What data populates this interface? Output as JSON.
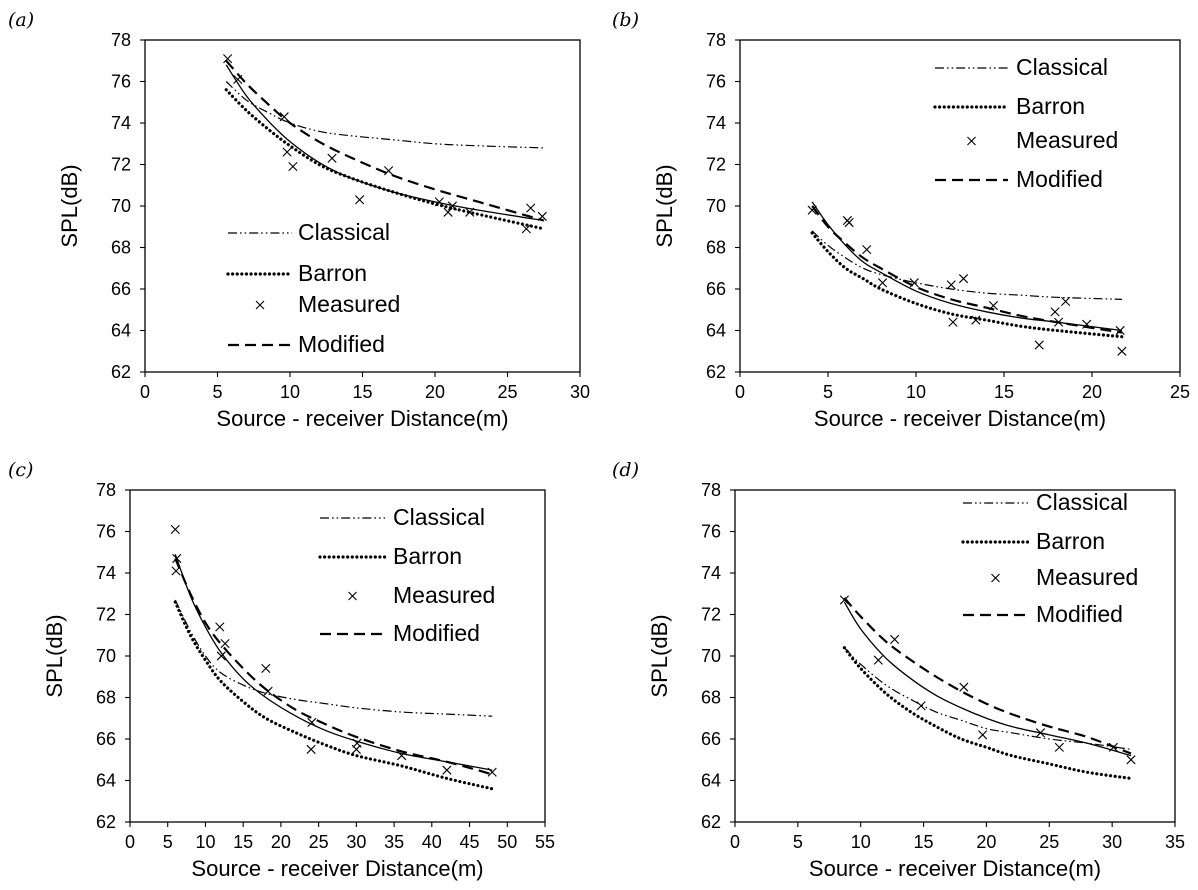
{
  "colors": {
    "ink": "#000000",
    "background": "#ffffff"
  },
  "legend_labels": [
    "Classical",
    "Barron",
    "Measured",
    "Modified"
  ],
  "chart_data": [
    {
      "type": "scatter",
      "panel_label": "(a)",
      "xlabel": "Source - receiver Distance(m)",
      "ylabel": "SPL(dB)",
      "xlim": [
        0,
        30
      ],
      "xticks": [
        0,
        5,
        10,
        15,
        20,
        25,
        30
      ],
      "ylim": [
        62,
        78
      ],
      "yticks": [
        62,
        64,
        66,
        68,
        70,
        72,
        74,
        76,
        78
      ],
      "legend_position": "lower-left",
      "series": [
        {
          "name": "Classical",
          "style": "dash-dot-dot",
          "x": [
            5.6,
            7,
            8.5,
            10,
            12,
            14,
            17,
            20,
            23,
            27.5
          ],
          "y": [
            76.0,
            75.1,
            74.5,
            74.0,
            73.6,
            73.4,
            73.2,
            73.0,
            72.9,
            72.8
          ]
        },
        {
          "name": "Barron",
          "style": "dotted",
          "x": [
            5.6,
            7,
            8.5,
            10,
            12,
            14,
            17,
            20,
            23,
            27.5
          ],
          "y": [
            75.6,
            74.6,
            73.7,
            72.9,
            72.0,
            71.4,
            70.7,
            70.1,
            69.6,
            68.9
          ]
        },
        {
          "name": "Measured",
          "style": "marker-x",
          "x": [
            5.7,
            6.4,
            9.6,
            9.8,
            10.2,
            12.9,
            14.8,
            16.8,
            20.3,
            20.9,
            21.2,
            22.4,
            26.3,
            26.6,
            27.4
          ],
          "y": [
            77.1,
            76.1,
            74.3,
            72.6,
            71.9,
            72.3,
            70.3,
            71.7,
            70.2,
            69.7,
            70.0,
            69.7,
            68.9,
            69.9,
            69.5
          ]
        },
        {
          "name": "Modified",
          "style": "dashed",
          "x": [
            5.6,
            7,
            8.5,
            10,
            12,
            14,
            17,
            20,
            23,
            27.5
          ],
          "y": [
            77.0,
            75.9,
            74.9,
            74.0,
            73.1,
            72.4,
            71.5,
            70.8,
            70.2,
            69.3
          ]
        },
        {
          "name": "",
          "style": "solid",
          "x": [
            5.6,
            7,
            8.5,
            10,
            12,
            14,
            17,
            20,
            23,
            27.5
          ],
          "y": [
            76.8,
            75.3,
            74.1,
            73.1,
            72.1,
            71.4,
            70.7,
            70.2,
            69.8,
            69.3
          ]
        }
      ]
    },
    {
      "type": "scatter",
      "panel_label": "(b)",
      "xlabel": "Source - receiver Distance(m)",
      "ylabel": "SPL(dB)",
      "xlim": [
        0,
        25
      ],
      "xticks": [
        0,
        5,
        10,
        15,
        20,
        25
      ],
      "ylim": [
        62,
        78
      ],
      "yticks": [
        62,
        64,
        66,
        68,
        70,
        72,
        74,
        76,
        78
      ],
      "legend_position": "top-right",
      "series": [
        {
          "name": "Classical",
          "style": "dash-dot-dot",
          "x": [
            4.1,
            5,
            6,
            7,
            8,
            10,
            12,
            14,
            16,
            18,
            21.7
          ],
          "y": [
            68.8,
            68.1,
            67.5,
            67.0,
            66.7,
            66.3,
            66.0,
            65.8,
            65.7,
            65.6,
            65.5
          ]
        },
        {
          "name": "Barron",
          "style": "dotted",
          "x": [
            4.1,
            5,
            6,
            7,
            8,
            10,
            12,
            14,
            16,
            18,
            21.7
          ],
          "y": [
            68.7,
            67.8,
            67.0,
            66.5,
            66.0,
            65.3,
            64.8,
            64.5,
            64.2,
            64.0,
            63.7
          ]
        },
        {
          "name": "Measured",
          "style": "marker-x",
          "x": [
            4.1,
            6.1,
            6.2,
            7.2,
            8.1,
            9.9,
            12.0,
            12.1,
            12.7,
            13.4,
            14.4,
            17.0,
            17.9,
            18.1,
            18.5,
            19.7,
            21.6,
            21.7
          ],
          "y": [
            69.8,
            69.3,
            69.2,
            67.9,
            66.3,
            66.3,
            66.2,
            64.4,
            66.5,
            64.5,
            65.2,
            63.3,
            64.9,
            64.4,
            65.4,
            64.3,
            64.0,
            63.0
          ]
        },
        {
          "name": "Modified",
          "style": "dashed",
          "x": [
            4.1,
            5,
            6,
            7,
            8,
            10,
            12,
            14,
            16,
            18,
            21.7
          ],
          "y": [
            70.0,
            69.0,
            68.2,
            67.5,
            67.0,
            66.1,
            65.5,
            65.1,
            64.7,
            64.4,
            63.9
          ]
        },
        {
          "name": "",
          "style": "solid",
          "x": [
            4.1,
            5,
            6,
            7,
            8,
            10,
            12,
            14,
            16,
            18,
            21.7
          ],
          "y": [
            70.2,
            69.1,
            68.1,
            67.3,
            66.8,
            65.9,
            65.3,
            64.9,
            64.6,
            64.4,
            64.0
          ]
        }
      ]
    },
    {
      "type": "scatter",
      "panel_label": "(c)",
      "xlabel": "Source - receiver Distance(m)",
      "ylabel": "SPL(dB)",
      "xlim": [
        0,
        55
      ],
      "xticks": [
        0,
        5,
        10,
        15,
        20,
        25,
        30,
        35,
        40,
        45,
        50,
        55
      ],
      "ylim": [
        62,
        78
      ],
      "yticks": [
        62,
        64,
        66,
        68,
        70,
        72,
        74,
        76,
        78
      ],
      "legend_position": "top-right",
      "series": [
        {
          "name": "Classical",
          "style": "dash-dot-dot",
          "x": [
            6,
            8,
            10,
            12,
            15,
            18,
            22,
            26,
            30,
            36,
            42,
            48
          ],
          "y": [
            72.7,
            71.2,
            70.0,
            69.2,
            68.6,
            68.2,
            67.9,
            67.7,
            67.5,
            67.3,
            67.2,
            67.1
          ]
        },
        {
          "name": "Barron",
          "style": "dotted",
          "x": [
            6,
            8,
            10,
            12,
            15,
            18,
            22,
            26,
            30,
            36,
            42,
            48
          ],
          "y": [
            72.6,
            71.0,
            69.8,
            68.8,
            67.8,
            67.0,
            66.3,
            65.7,
            65.2,
            64.7,
            64.1,
            63.6
          ]
        },
        {
          "name": "Measured",
          "style": "marker-x",
          "x": [
            6.0,
            6.1,
            6.2,
            11.9,
            12.1,
            12.6,
            18.0,
            18.3,
            24.0,
            24.1,
            30.0,
            30.1,
            36.0,
            42.0,
            48.0
          ],
          "y": [
            76.1,
            74.1,
            74.7,
            71.4,
            70.0,
            70.6,
            69.4,
            68.3,
            65.5,
            66.8,
            65.5,
            65.8,
            65.2,
            64.5,
            64.4
          ]
        },
        {
          "name": "Modified",
          "style": "dashed",
          "x": [
            6,
            8,
            10,
            12,
            15,
            18,
            22,
            26,
            30,
            36,
            42,
            48
          ],
          "y": [
            74.7,
            73.0,
            71.6,
            70.6,
            69.4,
            68.4,
            67.4,
            66.7,
            66.1,
            65.4,
            64.9,
            64.3
          ]
        },
        {
          "name": "",
          "style": "solid",
          "x": [
            6,
            8,
            10,
            12,
            15,
            18,
            22,
            26,
            30,
            36,
            42,
            48
          ],
          "y": [
            74.9,
            72.9,
            71.4,
            70.2,
            68.9,
            68.0,
            67.1,
            66.4,
            65.9,
            65.3,
            64.9,
            64.5
          ]
        }
      ]
    },
    {
      "type": "scatter",
      "panel_label": "(d)",
      "xlabel": "Source - receiver Distance(m)",
      "ylabel": "SPL(dB)",
      "xlim": [
        0,
        35
      ],
      "xticks": [
        0,
        5,
        10,
        15,
        20,
        25,
        30,
        35
      ],
      "ylim": [
        62,
        78
      ],
      "yticks": [
        62,
        64,
        66,
        68,
        70,
        72,
        74,
        76,
        78
      ],
      "legend_position": "top-right",
      "series": [
        {
          "name": "Classical",
          "style": "dash-dot-dot",
          "x": [
            8.7,
            10,
            12,
            14,
            16,
            18,
            20,
            22,
            25,
            28,
            31.5
          ],
          "y": [
            70.4,
            69.6,
            68.6,
            67.9,
            67.3,
            66.9,
            66.5,
            66.3,
            66.0,
            65.8,
            65.5
          ]
        },
        {
          "name": "Barron",
          "style": "dotted",
          "x": [
            8.7,
            10,
            12,
            14,
            16,
            18,
            20,
            22,
            25,
            28,
            31.5
          ],
          "y": [
            70.4,
            69.4,
            68.2,
            67.3,
            66.6,
            66.0,
            65.6,
            65.2,
            64.8,
            64.4,
            64.1
          ]
        },
        {
          "name": "Measured",
          "style": "marker-x",
          "x": [
            8.7,
            11.4,
            12.7,
            14.8,
            18.2,
            19.7,
            24.3,
            25.8,
            30.1,
            31.5
          ],
          "y": [
            72.7,
            69.8,
            70.8,
            67.6,
            68.5,
            66.2,
            66.3,
            65.6,
            65.6,
            65.0
          ]
        },
        {
          "name": "Modified",
          "style": "dashed",
          "x": [
            8.7,
            10,
            12,
            14,
            16,
            18,
            20,
            22,
            25,
            28,
            31.5
          ],
          "y": [
            72.8,
            71.9,
            70.7,
            69.8,
            69.0,
            68.3,
            67.7,
            67.2,
            66.6,
            66.1,
            65.3
          ]
        },
        {
          "name": "",
          "style": "solid",
          "x": [
            8.7,
            10,
            12,
            14,
            16,
            18,
            20,
            22,
            25,
            28,
            31.5
          ],
          "y": [
            72.6,
            71.3,
            69.9,
            68.9,
            68.1,
            67.5,
            67.0,
            66.6,
            66.2,
            65.8,
            65.2
          ]
        }
      ]
    }
  ]
}
